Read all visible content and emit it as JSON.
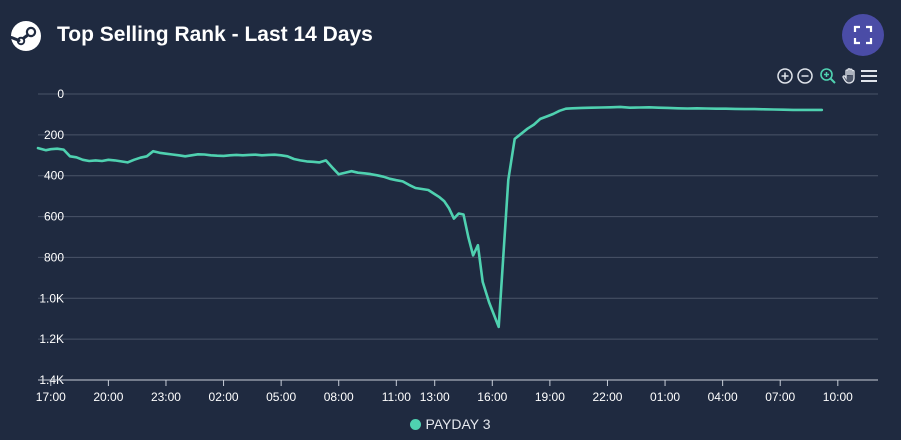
{
  "header": {
    "title": "Top Selling Rank - Last 14 Days",
    "logo_icon": "steam-logo-icon",
    "fullscreen_icon": "fullscreen-icon"
  },
  "toolbar": {
    "icons": [
      "zoom-in-icon",
      "zoom-out-icon",
      "selection-zoom-icon",
      "pan-hand-icon",
      "menu-icon"
    ],
    "active_color": "#4fd1b0"
  },
  "colors": {
    "background": "#1f2a40",
    "series": "#4fd1b0",
    "grid": "#4a5468",
    "fullscreen_button": "#4a4ca6"
  },
  "chart_data": {
    "type": "line",
    "title": "Top Selling Rank - Last 14 Days",
    "xlabel": "",
    "ylabel": "",
    "y_reversed": true,
    "ylim": [
      0,
      1400
    ],
    "yticks": [
      {
        "value": 0,
        "label": "0"
      },
      {
        "value": 200,
        "label": "200"
      },
      {
        "value": 400,
        "label": "400"
      },
      {
        "value": 600,
        "label": "600"
      },
      {
        "value": 800,
        "label": "800"
      },
      {
        "value": 1000,
        "label": "1.0K"
      },
      {
        "value": 1200,
        "label": "1.2K"
      },
      {
        "value": 1400,
        "label": "1.4K"
      }
    ],
    "xlim": [
      "16:20",
      "11:25"
    ],
    "xticks": [
      {
        "value": "17:00",
        "label": "17:00"
      },
      {
        "value": "20:00",
        "label": "20:00"
      },
      {
        "value": "23:00",
        "label": "23:00"
      },
      {
        "value": "02:00",
        "label": "02:00"
      },
      {
        "value": "05:00",
        "label": "05:00"
      },
      {
        "value": "08:00",
        "label": "08:00"
      },
      {
        "value": "11:00",
        "label": "11:00"
      },
      {
        "value": "13:00",
        "label": "13:00"
      },
      {
        "value": "16:00",
        "label": "16:00"
      },
      {
        "value": "19:00",
        "label": "19:00"
      },
      {
        "value": "22:00",
        "label": "22:00"
      },
      {
        "value": "01:00",
        "label": "01:00"
      },
      {
        "value": "04:00",
        "label": "04:00"
      },
      {
        "value": "07:00",
        "label": "07:00"
      },
      {
        "value": "10:00",
        "label": "10:00"
      }
    ],
    "grid": true,
    "legend": "bottom-center",
    "series": [
      {
        "name": "PAYDAY 3",
        "color": "#4fd1b0",
        "points": [
          [
            "16:20",
            265
          ],
          [
            "16:45",
            275
          ],
          [
            "17:00",
            270
          ],
          [
            "17:20",
            268
          ],
          [
            "17:40",
            272
          ],
          [
            "18:00",
            305
          ],
          [
            "18:20",
            310
          ],
          [
            "18:40",
            322
          ],
          [
            "19:00",
            328
          ],
          [
            "19:20",
            325
          ],
          [
            "19:40",
            328
          ],
          [
            "20:00",
            322
          ],
          [
            "20:20",
            325
          ],
          [
            "20:40",
            330
          ],
          [
            "21:00",
            335
          ],
          [
            "21:20",
            322
          ],
          [
            "21:40",
            312
          ],
          [
            "22:00",
            305
          ],
          [
            "22:20",
            280
          ],
          [
            "22:40",
            288
          ],
          [
            "23:00",
            292
          ],
          [
            "23:20",
            296
          ],
          [
            "23:40",
            300
          ],
          [
            "00:00",
            305
          ],
          [
            "00:20",
            300
          ],
          [
            "00:40",
            295
          ],
          [
            "01:00",
            296
          ],
          [
            "01:20",
            300
          ],
          [
            "01:40",
            302
          ],
          [
            "02:00",
            303
          ],
          [
            "02:20",
            300
          ],
          [
            "02:40",
            298
          ],
          [
            "03:00",
            300
          ],
          [
            "03:20",
            298
          ],
          [
            "03:40",
            297
          ],
          [
            "04:00",
            300
          ],
          [
            "04:20",
            298
          ],
          [
            "04:40",
            297
          ],
          [
            "05:00",
            300
          ],
          [
            "05:20",
            305
          ],
          [
            "05:40",
            318
          ],
          [
            "06:00",
            325
          ],
          [
            "06:20",
            330
          ],
          [
            "06:40",
            332
          ],
          [
            "07:00",
            335
          ],
          [
            "07:20",
            325
          ],
          [
            "07:40",
            360
          ],
          [
            "08:00",
            393
          ],
          [
            "08:20",
            385
          ],
          [
            "08:40",
            378
          ],
          [
            "09:00",
            385
          ],
          [
            "09:20",
            388
          ],
          [
            "09:40",
            392
          ],
          [
            "10:00",
            398
          ],
          [
            "10:20",
            405
          ],
          [
            "10:40",
            415
          ],
          [
            "11:00",
            422
          ],
          [
            "11:20",
            428
          ],
          [
            "11:40",
            445
          ],
          [
            "12:00",
            460
          ],
          [
            "12:20",
            465
          ],
          [
            "12:40",
            470
          ],
          [
            "13:00",
            490
          ],
          [
            "13:15",
            505
          ],
          [
            "13:30",
            525
          ],
          [
            "13:45",
            560
          ],
          [
            "14:00",
            610
          ],
          [
            "14:15",
            585
          ],
          [
            "14:30",
            590
          ],
          [
            "14:45",
            700
          ],
          [
            "15:00",
            790
          ],
          [
            "15:15",
            740
          ],
          [
            "15:30",
            920
          ],
          [
            "15:50",
            1020
          ],
          [
            "16:05",
            1080
          ],
          [
            "16:20",
            1140
          ],
          [
            "16:50",
            420
          ],
          [
            "17:10",
            220
          ],
          [
            "17:30",
            195
          ],
          [
            "17:50",
            170
          ],
          [
            "18:10",
            150
          ],
          [
            "18:30",
            122
          ],
          [
            "18:50",
            110
          ],
          [
            "19:10",
            98
          ],
          [
            "19:30",
            82
          ],
          [
            "19:50",
            72
          ],
          [
            "20:10",
            70
          ],
          [
            "20:40",
            68
          ],
          [
            "21:10",
            67
          ],
          [
            "21:40",
            66
          ],
          [
            "22:10",
            65
          ],
          [
            "22:40",
            63
          ],
          [
            "23:10",
            67
          ],
          [
            "23:40",
            66
          ],
          [
            "00:10",
            65
          ],
          [
            "00:40",
            67
          ],
          [
            "01:10",
            68
          ],
          [
            "01:40",
            70
          ],
          [
            "02:10",
            71
          ],
          [
            "02:40",
            70
          ],
          [
            "03:10",
            71
          ],
          [
            "03:40",
            72
          ],
          [
            "04:10",
            72
          ],
          [
            "04:40",
            73
          ],
          [
            "05:10",
            74
          ],
          [
            "05:40",
            74
          ],
          [
            "06:10",
            75
          ],
          [
            "06:40",
            76
          ],
          [
            "07:10",
            77
          ],
          [
            "07:40",
            78
          ],
          [
            "08:10",
            78
          ],
          [
            "08:40",
            78
          ],
          [
            "09:10",
            78
          ]
        ]
      }
    ]
  }
}
